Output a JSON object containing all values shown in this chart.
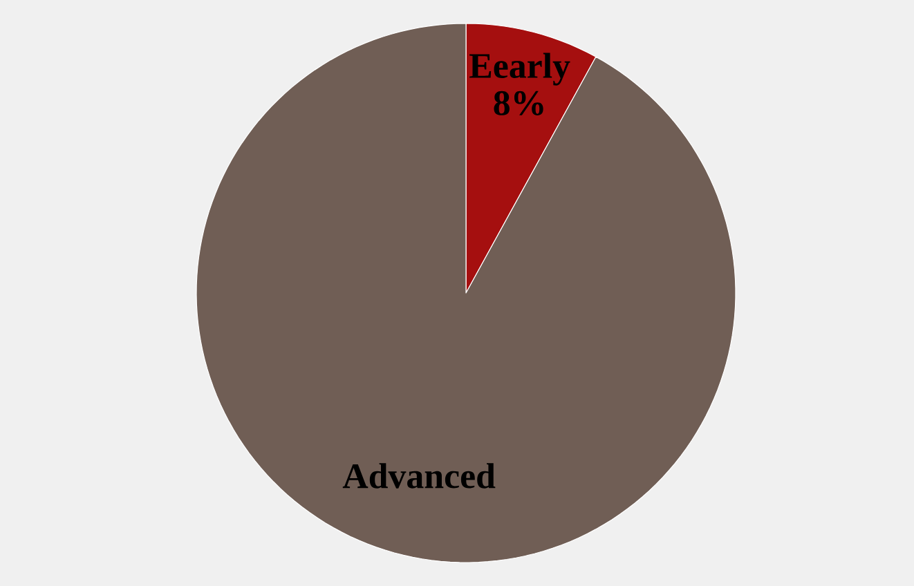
{
  "chart_data": {
    "type": "pie",
    "categories": [
      "Eearly",
      "Advanced"
    ],
    "values": [
      8,
      92
    ],
    "value_labels": [
      "8%",
      null
    ],
    "colors": [
      "#a50f0f",
      "#705e55"
    ]
  }
}
